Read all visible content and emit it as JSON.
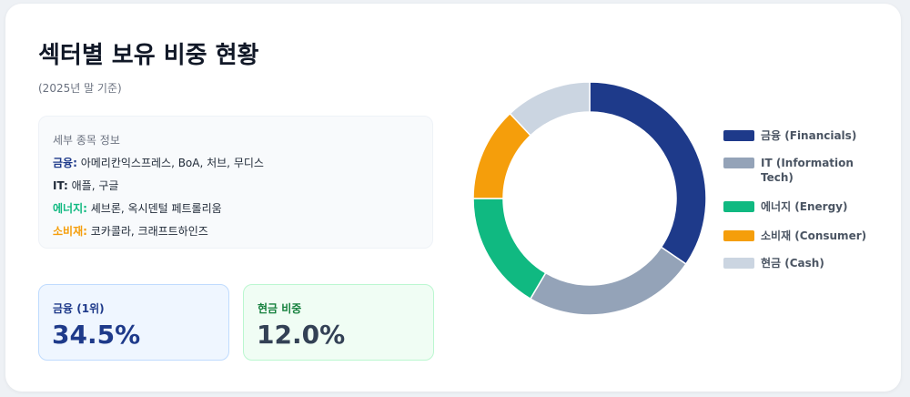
{
  "header": {
    "title": "섹터별 보유 비중 현황",
    "subtitle": "(2025년 말 기준)"
  },
  "info": {
    "heading": "세부 종목 정보",
    "items": [
      {
        "label": "금융:",
        "text": " 아메리칸익스프레스, BoA, 처브, 무디스",
        "color": "#1e3a8a"
      },
      {
        "label": "IT:",
        "text": " 애플, 구글",
        "color": "#1f2937"
      },
      {
        "label": "에너지:",
        "text": " 셰브론, 옥시덴털 페트롤리움",
        "color": "#10b981"
      },
      {
        "label": "소비재:",
        "text": " 코카콜라, 크래프트하인즈",
        "color": "#f59e0b"
      }
    ]
  },
  "stats": [
    {
      "label": "금융 (1위)",
      "value": "34.5%",
      "color": "#1e3a8a",
      "background": "#eff6ff",
      "border": "#bfdbfe"
    },
    {
      "label": "현금 비중",
      "value": "12.0%",
      "color": "#334155",
      "background": "#f0fdf4",
      "border": "#bbf7d0",
      "label_color": "#15803d"
    }
  ],
  "chart_data": {
    "type": "donut",
    "categories": [
      "금융 (Financials)",
      "IT (Information Tech)",
      "에너지 (Energy)",
      "소비재 (Consumer)",
      "현금 (Cash)"
    ],
    "values": [
      34.5,
      24.0,
      16.5,
      13.0,
      12.0
    ],
    "colors": [
      "#1e3a8a",
      "#94a3b8",
      "#10b981",
      "#f59e0b",
      "#cbd5e1"
    ],
    "legend": "right"
  }
}
